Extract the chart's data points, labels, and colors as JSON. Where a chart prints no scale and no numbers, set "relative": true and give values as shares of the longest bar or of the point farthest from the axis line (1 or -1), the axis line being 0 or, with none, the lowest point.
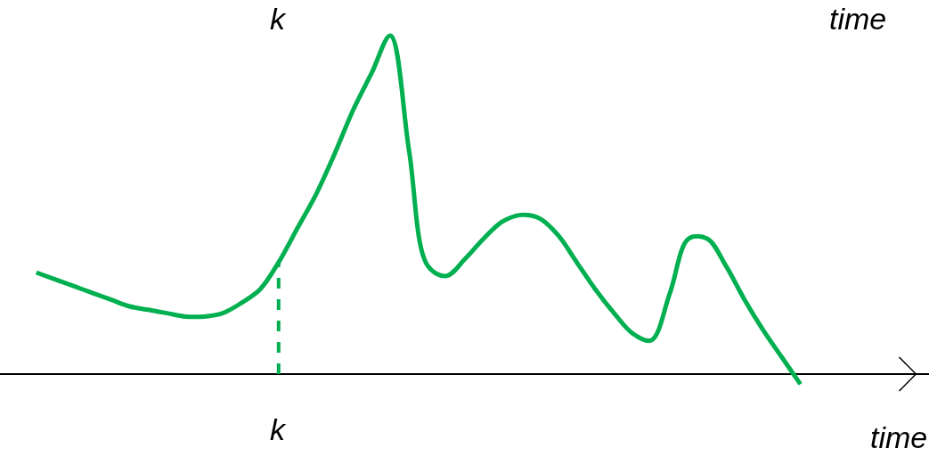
{
  "chart_data": {
    "type": "line",
    "relative": true,
    "categories": [
      null,
      null,
      null,
      null,
      null,
      null,
      null,
      null,
      null,
      null,
      null,
      null,
      null,
      null,
      null,
      null,
      null,
      null,
      null,
      null,
      null,
      null,
      null,
      null,
      null,
      null,
      null,
      null,
      null,
      null,
      null,
      null,
      null,
      null,
      null,
      null,
      null,
      null,
      null,
      null,
      null,
      null
    ],
    "series": [
      {
        "color": "#00b050",
        "values": [
          0.3,
          0.28,
          0.26,
          0.24,
          0.22,
          0.2,
          0.19,
          0.18,
          0.17,
          0.17,
          0.18,
          0.21,
          0.25,
          0.33,
          0.43,
          0.53,
          0.65,
          0.78,
          0.89,
          1,
          0.66,
          0.32,
          0.29,
          0.34,
          0.4,
          0.45,
          0.47,
          0.46,
          0.41,
          0.33,
          0.25,
          0.18,
          0.12,
          0.1,
          0.24,
          0.4,
          0.4,
          0.32,
          0.22,
          0.13,
          0.05,
          -0.03
        ]
      }
    ],
    "xlabel": "time",
    "annotations": [
      "k",
      "time",
      "k"
    ],
    "marker": "none",
    "line_style": "solid"
  }
}
